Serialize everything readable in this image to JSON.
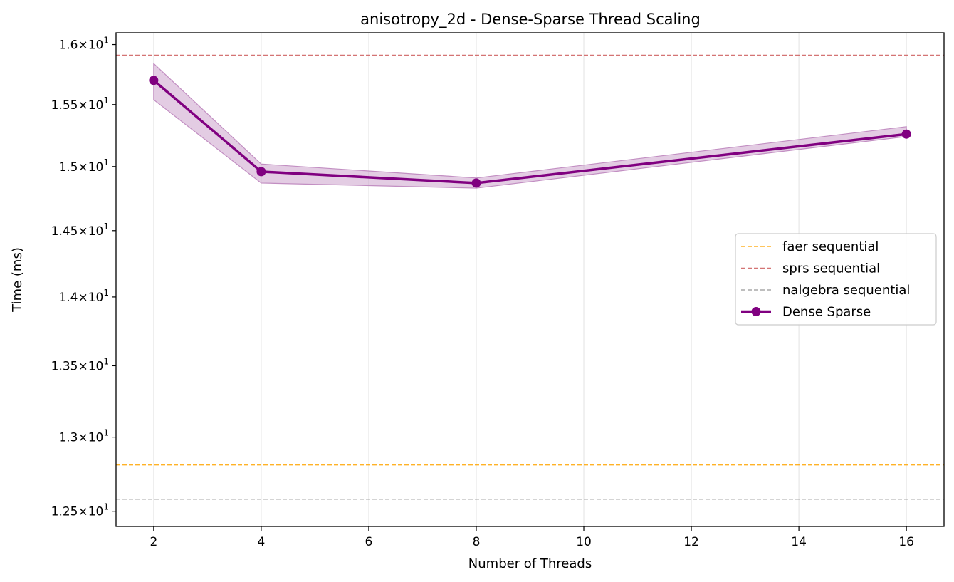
{
  "chart_data": {
    "type": "line",
    "title": "anisotropy_2d - Dense-Sparse Thread Scaling",
    "xlabel": "Number of Threads",
    "ylabel": "Time (ms)",
    "y_scale": "log",
    "xlim": [
      1.3,
      16.7
    ],
    "ylim": [
      12.4,
      16.1
    ],
    "x_ticks": [
      2,
      4,
      6,
      8,
      10,
      12,
      14,
      16
    ],
    "x_tick_labels": [
      "2",
      "4",
      "6",
      "8",
      "10",
      "12",
      "14",
      "16"
    ],
    "y_ticks": [
      12.5,
      13.0,
      13.5,
      14.0,
      14.5,
      15.0,
      15.5,
      16.0
    ],
    "y_tick_mantissas": [
      "1.25",
      "1.3",
      "1.35",
      "1.4",
      "1.45",
      "1.5",
      "1.55",
      "1.6"
    ],
    "y_tick_multiplier": "×10",
    "y_tick_exponent": "1",
    "grid": "x",
    "legend_position": "center-right",
    "series": [
      {
        "name": "Dense Sparse",
        "color": "#800080",
        "x": [
          2,
          4,
          8,
          16
        ],
        "y": [
          15.7,
          14.96,
          14.87,
          15.26
        ],
        "y_lower": [
          15.54,
          14.87,
          14.83,
          15.24
        ],
        "y_upper": [
          15.84,
          15.02,
          14.91,
          15.32
        ],
        "band_color": "#c28ec2"
      }
    ],
    "reference_lines": [
      {
        "name": "faer sequential",
        "y": 12.81,
        "color": "#ffa500"
      },
      {
        "name": "sprs sequential",
        "y": 15.91,
        "color": "#cd5c5c"
      },
      {
        "name": "nalgebra sequential",
        "y": 12.58,
        "color": "#999999"
      }
    ],
    "legend_order": [
      "faer sequential",
      "sprs sequential",
      "nalgebra sequential",
      "Dense Sparse"
    ]
  }
}
